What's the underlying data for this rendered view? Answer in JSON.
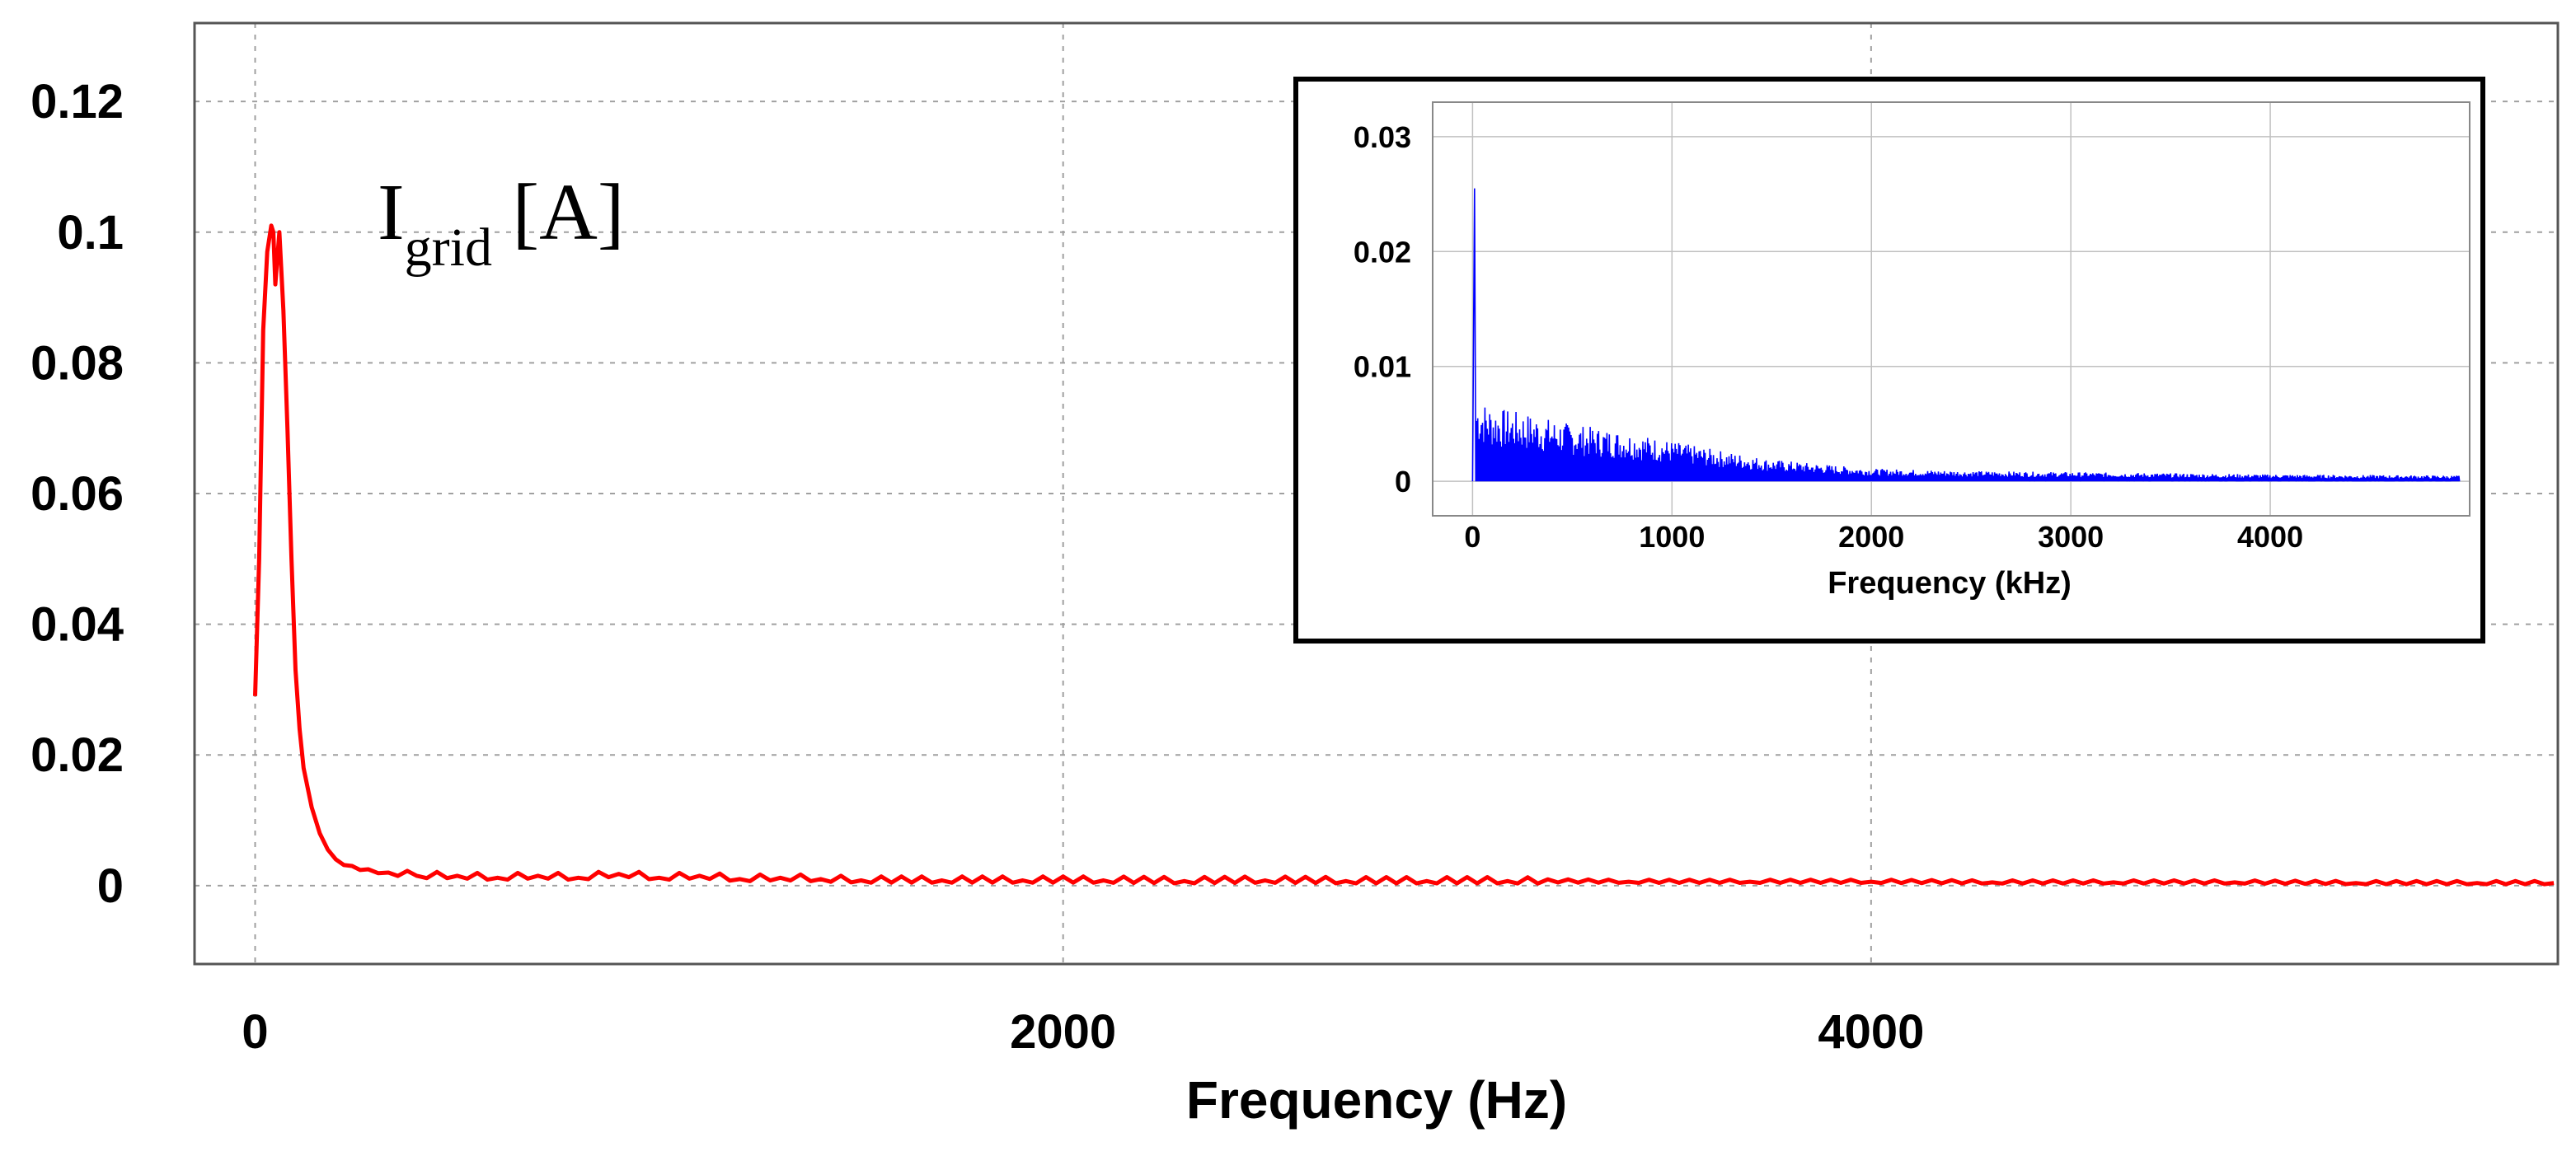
{
  "chart_data": [
    {
      "type": "line",
      "name": "main",
      "title": "",
      "annotation": {
        "main": "I",
        "sub": "grid",
        "unit": " [A]"
      },
      "xlabel": "Frequency (Hz)",
      "ylabel": "",
      "xlim": [
        -150,
        5700
      ],
      "ylim": [
        -0.012,
        0.132
      ],
      "xticks": [
        0,
        2000,
        4000
      ],
      "xtick_labels": [
        "0",
        "2000",
        "4000"
      ],
      "yticks": [
        0,
        0.02,
        0.04,
        0.06,
        0.08,
        0.1,
        0.12
      ],
      "ytick_labels": [
        "0",
        "0.02",
        "0.04",
        "0.06",
        "0.08",
        "0.1",
        "0.12"
      ],
      "grid": true,
      "series": [
        {
          "name": "Igrid",
          "color": "#ff0000",
          "x": [
            0,
            10,
            20,
            30,
            40,
            45,
            50,
            60,
            70,
            80,
            90,
            100,
            110,
            120,
            140,
            160,
            180,
            200,
            240,
            280,
            330,
            400,
            500,
            600,
            700,
            800,
            900,
            1000,
            1100,
            1200,
            1300,
            1400,
            1500,
            1700,
            1900,
            2100,
            2300,
            2500,
            2700,
            2900,
            3100,
            3400,
            3700,
            4000,
            4300,
            4600,
            4900,
            5200,
            5500,
            5690
          ],
          "y": [
            0.029,
            0.05,
            0.085,
            0.097,
            0.101,
            0.1,
            0.092,
            0.1,
            0.088,
            0.07,
            0.05,
            0.033,
            0.024,
            0.018,
            0.012,
            0.008,
            0.0055,
            0.004,
            0.003,
            0.0025,
            0.002,
            0.0015,
            0.0015,
            0.0012,
            0.0015,
            0.0012,
            0.0018,
            0.0012,
            0.0015,
            0.001,
            0.0012,
            0.001,
            0.0008,
            0.0008,
            0.0008,
            0.0008,
            0.0007,
            0.0008,
            0.0007,
            0.0007,
            0.0007,
            0.0006,
            0.0006,
            0.0006,
            0.0005,
            0.0005,
            0.0005,
            0.0004,
            0.0004,
            0.0004
          ]
        }
      ]
    },
    {
      "type": "line",
      "name": "inset",
      "title": "",
      "xlabel": "Frequency (kHz)",
      "ylabel": "",
      "xlim": [
        -200,
        5000
      ],
      "ylim": [
        -0.003,
        0.033
      ],
      "xticks": [
        0,
        1000,
        2000,
        3000,
        4000
      ],
      "xtick_labels": [
        "0",
        "1000",
        "2000",
        "3000",
        "4000"
      ],
      "yticks": [
        0,
        0.01,
        0.02,
        0.03
      ],
      "ytick_labels": [
        "0",
        "0.01",
        "0.02",
        "0.03"
      ],
      "grid": true,
      "series": [
        {
          "name": "spectrum",
          "color": "#0000ff",
          "peak": {
            "x": 10,
            "y": 0.0255
          },
          "envelope_x": [
            0,
            100,
            300,
            500,
            800,
            1000,
            1200,
            1500,
            2000,
            2500,
            3000,
            4000,
            4950
          ],
          "envelope_y": [
            0.0075,
            0.0065,
            0.0058,
            0.005,
            0.0042,
            0.0035,
            0.0028,
            0.0019,
            0.0011,
            0.0009,
            0.0008,
            0.0006,
            0.0005
          ]
        }
      ]
    }
  ]
}
